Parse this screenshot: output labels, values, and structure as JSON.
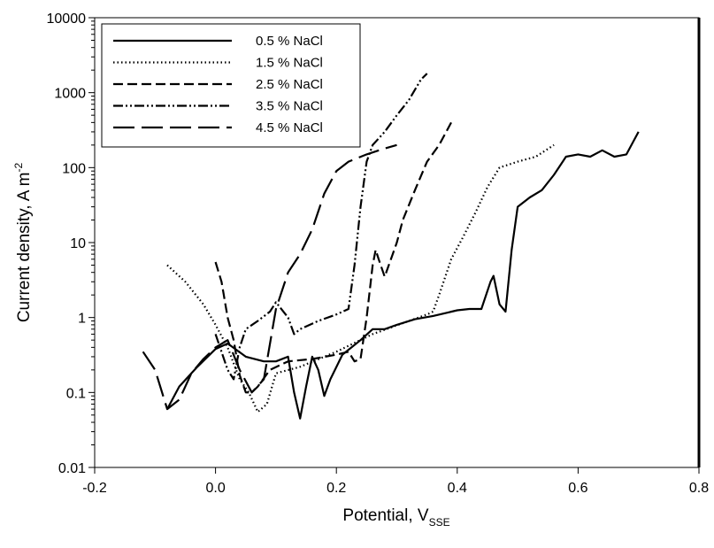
{
  "chart_data": {
    "type": "line",
    "title": "",
    "xlabel": "Potential, V",
    "xlabel_sub": "SSE",
    "ylabel": "Current density, A m",
    "ylabel_sup": "-2",
    "xlim": [
      -0.2,
      0.8
    ],
    "ylim": [
      0.01,
      10000
    ],
    "yscale": "log",
    "grid": false,
    "legend_position": "top-left",
    "x_ticks": [
      "-0.2",
      "0.0",
      "0.2",
      "0.4",
      "0.6",
      "0.8"
    ],
    "y_ticks": [
      "0.01",
      "0.1",
      "1",
      "10",
      "100",
      "1000",
      "10000"
    ],
    "series": [
      {
        "name": "0.5 % NaCl",
        "dash": "solid",
        "points": [
          [
            -0.08,
            0.06
          ],
          [
            -0.06,
            0.12
          ],
          [
            -0.03,
            0.22
          ],
          [
            0.0,
            0.38
          ],
          [
            0.02,
            0.45
          ],
          [
            0.05,
            0.3
          ],
          [
            0.08,
            0.26
          ],
          [
            0.1,
            0.26
          ],
          [
            0.12,
            0.3
          ],
          [
            0.13,
            0.1
          ],
          [
            0.14,
            0.045
          ],
          [
            0.15,
            0.12
          ],
          [
            0.16,
            0.3
          ],
          [
            0.17,
            0.2
          ],
          [
            0.18,
            0.09
          ],
          [
            0.19,
            0.15
          ],
          [
            0.21,
            0.32
          ],
          [
            0.24,
            0.5
          ],
          [
            0.26,
            0.7
          ],
          [
            0.28,
            0.7
          ],
          [
            0.3,
            0.8
          ],
          [
            0.33,
            0.95
          ],
          [
            0.36,
            1.05
          ],
          [
            0.4,
            1.25
          ],
          [
            0.42,
            1.3
          ],
          [
            0.44,
            1.3
          ],
          [
            0.455,
            3.0
          ],
          [
            0.46,
            3.6
          ],
          [
            0.47,
            1.5
          ],
          [
            0.48,
            1.2
          ],
          [
            0.49,
            8.0
          ],
          [
            0.5,
            30
          ],
          [
            0.52,
            40
          ],
          [
            0.54,
            50
          ],
          [
            0.56,
            80
          ],
          [
            0.58,
            140
          ],
          [
            0.6,
            150
          ],
          [
            0.62,
            140
          ],
          [
            0.64,
            170
          ],
          [
            0.66,
            140
          ],
          [
            0.68,
            150
          ],
          [
            0.7,
            300
          ]
        ]
      },
      {
        "name": "1.5 % NaCl",
        "dash": "dotted",
        "points": [
          [
            -0.08,
            5.0
          ],
          [
            -0.05,
            3.0
          ],
          [
            -0.02,
            1.5
          ],
          [
            0.0,
            0.8
          ],
          [
            0.02,
            0.4
          ],
          [
            0.04,
            0.15
          ],
          [
            0.055,
            0.1
          ],
          [
            0.07,
            0.055
          ],
          [
            0.085,
            0.07
          ],
          [
            0.1,
            0.18
          ],
          [
            0.14,
            0.22
          ],
          [
            0.2,
            0.35
          ],
          [
            0.26,
            0.6
          ],
          [
            0.32,
            0.9
          ],
          [
            0.35,
            1.1
          ],
          [
            0.36,
            1.2
          ],
          [
            0.37,
            2.0
          ],
          [
            0.39,
            6.0
          ],
          [
            0.41,
            12
          ],
          [
            0.43,
            25
          ],
          [
            0.45,
            55
          ],
          [
            0.47,
            100
          ],
          [
            0.5,
            120
          ],
          [
            0.53,
            140
          ],
          [
            0.56,
            200
          ]
        ]
      },
      {
        "name": "2.5 % NaCl",
        "dash": "dashed",
        "points": [
          [
            0.0,
            5.5
          ],
          [
            0.01,
            3.0
          ],
          [
            0.02,
            1.0
          ],
          [
            0.03,
            0.5
          ],
          [
            0.04,
            0.17
          ],
          [
            0.05,
            0.1
          ],
          [
            0.06,
            0.1
          ],
          [
            0.07,
            0.12
          ],
          [
            0.09,
            0.2
          ],
          [
            0.12,
            0.26
          ],
          [
            0.16,
            0.28
          ],
          [
            0.2,
            0.32
          ],
          [
            0.22,
            0.35
          ],
          [
            0.23,
            0.26
          ],
          [
            0.24,
            0.28
          ],
          [
            0.25,
            1.0
          ],
          [
            0.26,
            5.0
          ],
          [
            0.265,
            8.0
          ],
          [
            0.27,
            6.0
          ],
          [
            0.28,
            3.5
          ],
          [
            0.3,
            10
          ],
          [
            0.31,
            20
          ],
          [
            0.33,
            50
          ],
          [
            0.35,
            120
          ],
          [
            0.37,
            200
          ],
          [
            0.39,
            400
          ]
        ]
      },
      {
        "name": "3.5 % NaCl",
        "dash": "dash-dot-dot",
        "points": [
          [
            0.0,
            0.6
          ],
          [
            0.02,
            0.2
          ],
          [
            0.03,
            0.15
          ],
          [
            0.04,
            0.4
          ],
          [
            0.05,
            0.7
          ],
          [
            0.07,
            0.9
          ],
          [
            0.09,
            1.2
          ],
          [
            0.1,
            1.6
          ],
          [
            0.12,
            1.0
          ],
          [
            0.13,
            0.6
          ],
          [
            0.14,
            0.7
          ],
          [
            0.17,
            0.9
          ],
          [
            0.2,
            1.1
          ],
          [
            0.22,
            1.3
          ],
          [
            0.23,
            5.0
          ],
          [
            0.24,
            30
          ],
          [
            0.25,
            120
          ],
          [
            0.26,
            200
          ],
          [
            0.28,
            300
          ],
          [
            0.3,
            500
          ],
          [
            0.32,
            800
          ],
          [
            0.34,
            1500
          ],
          [
            0.35,
            1800
          ]
        ]
      },
      {
        "name": "4.5 % NaCl",
        "dash": "long-dash",
        "points": [
          [
            -0.12,
            0.35
          ],
          [
            -0.1,
            0.2
          ],
          [
            -0.08,
            0.06
          ],
          [
            -0.06,
            0.08
          ],
          [
            -0.04,
            0.18
          ],
          [
            -0.02,
            0.28
          ],
          [
            0.0,
            0.4
          ],
          [
            0.02,
            0.5
          ],
          [
            0.04,
            0.2
          ],
          [
            0.06,
            0.1
          ],
          [
            0.08,
            0.15
          ],
          [
            0.1,
            1.3
          ],
          [
            0.12,
            4.0
          ],
          [
            0.14,
            7.0
          ],
          [
            0.16,
            15
          ],
          [
            0.18,
            45
          ],
          [
            0.2,
            90
          ],
          [
            0.22,
            120
          ],
          [
            0.25,
            150
          ],
          [
            0.28,
            180
          ],
          [
            0.3,
            200
          ]
        ]
      }
    ]
  }
}
